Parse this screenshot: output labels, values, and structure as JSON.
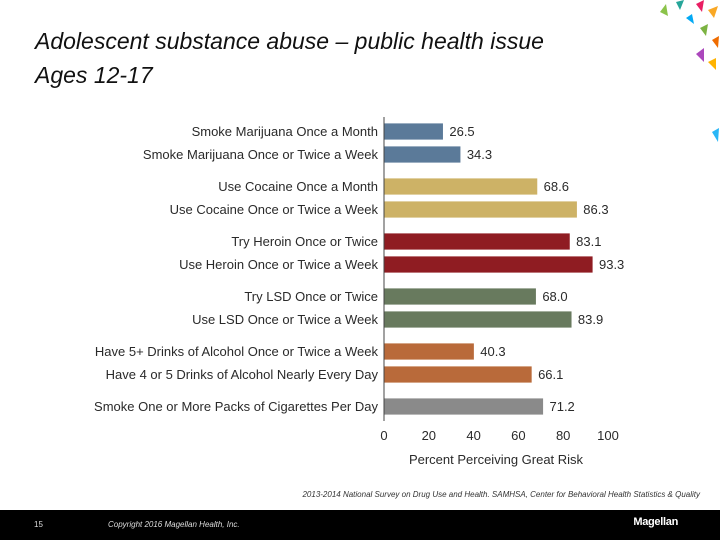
{
  "slide": {
    "title_line1": "Adolescent substance abuse – public health issue",
    "title_line2": "Ages 12-17",
    "source": "2013-2014 National Survey on Drug Use and Health. SAMHSA, Center for Behavioral Health Statistics & Quality",
    "page_number": "15",
    "copyright": "Copyright 2016 Magellan Health, Inc.",
    "logo_text": "Magellan"
  },
  "chart_data": {
    "type": "bar",
    "orientation": "horizontal",
    "title": "",
    "xlabel": "Percent Perceiving Great Risk",
    "ylabel": "",
    "xlim": [
      0,
      100
    ],
    "xticks": [
      0,
      20,
      40,
      60,
      80,
      100
    ],
    "grid": false,
    "legend": "none",
    "categories": [
      "Smoke Marijuana Once a Month",
      "Smoke Marijuana Once or Twice a Week",
      "Use Cocaine Once a Month",
      "Use Cocaine Once or Twice a Week",
      "Try Heroin Once or Twice",
      "Use Heroin Once or Twice a Week",
      "Try LSD Once or Twice",
      "Use LSD Once or Twice a Week",
      "Have 5+ Drinks of Alcohol Once or Twice a Week",
      "Have 4 or 5 Drinks of Alcohol Nearly Every Day",
      "Smoke One or More Packs of Cigarettes Per Day"
    ],
    "values": [
      26.5,
      34.3,
      68.6,
      86.3,
      83.1,
      93.3,
      68.0,
      83.9,
      40.3,
      66.1,
      71.2
    ],
    "value_labels": [
      "26.5",
      "34.3",
      "68.6",
      "86.3",
      "83.1",
      "93.3",
      "68.0",
      "83.9",
      "40.3",
      "66.1",
      "71.2"
    ],
    "groups": [
      0,
      0,
      1,
      1,
      2,
      2,
      3,
      3,
      4,
      4,
      5
    ],
    "colors": [
      "#5b7a99",
      "#5b7a99",
      "#cdb266",
      "#cdb266",
      "#8f1c22",
      "#8f1c22",
      "#687a5e",
      "#687a5e",
      "#b96a3a",
      "#b96a3a",
      "#8a8a8a"
    ]
  }
}
